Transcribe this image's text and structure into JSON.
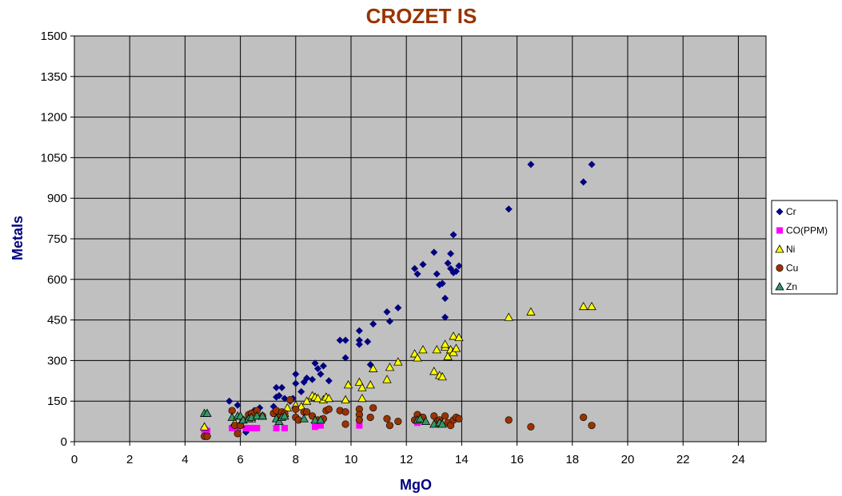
{
  "chart_data": {
    "type": "scatter",
    "title": "CROZET IS",
    "xlabel": "MgO",
    "ylabel": "Metals",
    "xlim": [
      0,
      25
    ],
    "ylim": [
      0,
      1500
    ],
    "xticks": [
      "0",
      "2",
      "4",
      "6",
      "8",
      "10",
      "12",
      "14",
      "16",
      "18",
      "20",
      "22",
      "24"
    ],
    "yticks": [
      "0",
      "150",
      "300",
      "450",
      "600",
      "750",
      "900",
      "1050",
      "1200",
      "1350",
      "1500"
    ],
    "grid": true,
    "legend_position": "right",
    "colors": {
      "title": "#993300",
      "axis_title": "#000080",
      "plot_bg": "#c0c0c0"
    },
    "series": [
      {
        "name": "Cr",
        "marker": "diamond",
        "color": "#000080",
        "points": [
          [
            5.6,
            150
          ],
          [
            5.7,
            55
          ],
          [
            5.9,
            135
          ],
          [
            6.0,
            60
          ],
          [
            6.2,
            35
          ],
          [
            6.3,
            95
          ],
          [
            6.5,
            115
          ],
          [
            6.7,
            125
          ],
          [
            7.2,
            130
          ],
          [
            7.3,
            200
          ],
          [
            7.3,
            165
          ],
          [
            7.4,
            170
          ],
          [
            7.5,
            200
          ],
          [
            7.6,
            160
          ],
          [
            7.8,
            150
          ],
          [
            7.9,
            160
          ],
          [
            8.0,
            250
          ],
          [
            8.0,
            215
          ],
          [
            8.2,
            185
          ],
          [
            8.3,
            220
          ],
          [
            8.4,
            235
          ],
          [
            8.6,
            230
          ],
          [
            8.7,
            290
          ],
          [
            8.8,
            270
          ],
          [
            8.9,
            250
          ],
          [
            9.0,
            280
          ],
          [
            9.2,
            225
          ],
          [
            9.6,
            375
          ],
          [
            9.8,
            375
          ],
          [
            9.8,
            310
          ],
          [
            10.3,
            410
          ],
          [
            10.3,
            375
          ],
          [
            10.3,
            360
          ],
          [
            10.6,
            370
          ],
          [
            10.7,
            285
          ],
          [
            10.8,
            435
          ],
          [
            11.3,
            480
          ],
          [
            11.4,
            445
          ],
          [
            11.7,
            495
          ],
          [
            12.3,
            640
          ],
          [
            12.4,
            620
          ],
          [
            12.6,
            655
          ],
          [
            13.0,
            700
          ],
          [
            13.1,
            620
          ],
          [
            13.2,
            580
          ],
          [
            13.3,
            585
          ],
          [
            13.4,
            530
          ],
          [
            13.4,
            460
          ],
          [
            13.5,
            660
          ],
          [
            13.6,
            640
          ],
          [
            13.6,
            695
          ],
          [
            13.7,
            765
          ],
          [
            13.7,
            625
          ],
          [
            13.8,
            630
          ],
          [
            13.9,
            650
          ],
          [
            15.7,
            860
          ],
          [
            16.5,
            1025
          ],
          [
            18.4,
            960
          ],
          [
            18.7,
            1025
          ]
        ]
      },
      {
        "name": "CO(PPM)",
        "marker": "square",
        "color": "#ff00ff",
        "points": [
          [
            4.7,
            45
          ],
          [
            4.8,
            40
          ],
          [
            5.7,
            50
          ],
          [
            5.9,
            55
          ],
          [
            6.2,
            50
          ],
          [
            6.4,
            50
          ],
          [
            6.6,
            50
          ],
          [
            7.3,
            50
          ],
          [
            7.6,
            50
          ],
          [
            8.7,
            55
          ],
          [
            8.9,
            60
          ],
          [
            10.3,
            60
          ],
          [
            12.4,
            70
          ]
        ]
      },
      {
        "name": "Ni",
        "marker": "triangle",
        "color": "#ffff00",
        "points": [
          [
            4.7,
            55
          ],
          [
            5.8,
            70
          ],
          [
            6.0,
            65
          ],
          [
            6.4,
            85
          ],
          [
            6.8,
            95
          ],
          [
            7.3,
            110
          ],
          [
            7.6,
            105
          ],
          [
            7.7,
            125
          ],
          [
            8.0,
            135
          ],
          [
            8.2,
            130
          ],
          [
            8.4,
            150
          ],
          [
            8.6,
            170
          ],
          [
            8.7,
            165
          ],
          [
            8.8,
            160
          ],
          [
            9.0,
            155
          ],
          [
            9.1,
            165
          ],
          [
            9.2,
            160
          ],
          [
            9.8,
            155
          ],
          [
            9.9,
            210
          ],
          [
            10.3,
            220
          ],
          [
            10.4,
            200
          ],
          [
            10.4,
            160
          ],
          [
            10.7,
            210
          ],
          [
            10.8,
            270
          ],
          [
            11.3,
            230
          ],
          [
            11.4,
            275
          ],
          [
            11.7,
            295
          ],
          [
            12.3,
            325
          ],
          [
            12.4,
            310
          ],
          [
            12.6,
            340
          ],
          [
            13.0,
            260
          ],
          [
            13.1,
            340
          ],
          [
            13.2,
            245
          ],
          [
            13.3,
            240
          ],
          [
            13.4,
            350
          ],
          [
            13.4,
            360
          ],
          [
            13.5,
            315
          ],
          [
            13.6,
            340
          ],
          [
            13.7,
            390
          ],
          [
            13.7,
            330
          ],
          [
            13.8,
            345
          ],
          [
            13.9,
            385
          ],
          [
            15.7,
            460
          ],
          [
            16.5,
            480
          ],
          [
            18.4,
            500
          ],
          [
            18.7,
            500
          ]
        ]
      },
      {
        "name": "Cu",
        "marker": "circle",
        "color": "#993300",
        "points": [
          [
            4.7,
            20
          ],
          [
            4.8,
            20
          ],
          [
            5.7,
            115
          ],
          [
            5.8,
            60
          ],
          [
            5.9,
            30
          ],
          [
            6.0,
            60
          ],
          [
            6.1,
            80
          ],
          [
            6.3,
            100
          ],
          [
            6.4,
            105
          ],
          [
            6.6,
            115
          ],
          [
            6.8,
            95
          ],
          [
            7.2,
            105
          ],
          [
            7.3,
            115
          ],
          [
            7.4,
            90
          ],
          [
            7.5,
            110
          ],
          [
            7.6,
            105
          ],
          [
            7.8,
            155
          ],
          [
            8.0,
            120
          ],
          [
            8.0,
            90
          ],
          [
            8.1,
            80
          ],
          [
            8.3,
            110
          ],
          [
            8.4,
            110
          ],
          [
            8.6,
            95
          ],
          [
            8.8,
            80
          ],
          [
            9.0,
            85
          ],
          [
            9.1,
            115
          ],
          [
            9.2,
            120
          ],
          [
            9.6,
            115
          ],
          [
            9.8,
            110
          ],
          [
            9.8,
            65
          ],
          [
            10.3,
            120
          ],
          [
            10.3,
            100
          ],
          [
            10.3,
            80
          ],
          [
            10.7,
            90
          ],
          [
            10.8,
            125
          ],
          [
            11.3,
            85
          ],
          [
            11.4,
            60
          ],
          [
            11.7,
            75
          ],
          [
            12.3,
            80
          ],
          [
            12.4,
            100
          ],
          [
            12.6,
            90
          ],
          [
            13.0,
            95
          ],
          [
            13.1,
            75
          ],
          [
            13.2,
            80
          ],
          [
            13.4,
            95
          ],
          [
            13.5,
            70
          ],
          [
            13.6,
            60
          ],
          [
            13.7,
            80
          ],
          [
            13.8,
            90
          ],
          [
            13.9,
            85
          ],
          [
            15.7,
            80
          ],
          [
            16.5,
            55
          ],
          [
            18.4,
            90
          ],
          [
            18.7,
            60
          ]
        ]
      },
      {
        "name": "Zn",
        "marker": "triangle",
        "color": "#339966",
        "points": [
          [
            4.7,
            105
          ],
          [
            4.8,
            105
          ],
          [
            5.7,
            90
          ],
          [
            5.9,
            95
          ],
          [
            6.0,
            95
          ],
          [
            6.1,
            80
          ],
          [
            6.3,
            85
          ],
          [
            6.4,
            90
          ],
          [
            6.6,
            95
          ],
          [
            6.8,
            95
          ],
          [
            7.3,
            85
          ],
          [
            7.4,
            75
          ],
          [
            7.5,
            90
          ],
          [
            7.6,
            95
          ],
          [
            8.3,
            85
          ],
          [
            8.7,
            80
          ],
          [
            8.9,
            80
          ],
          [
            12.4,
            80
          ],
          [
            12.5,
            85
          ],
          [
            12.7,
            75
          ],
          [
            13.0,
            65
          ],
          [
            13.2,
            70
          ],
          [
            13.3,
            65
          ]
        ]
      }
    ]
  }
}
